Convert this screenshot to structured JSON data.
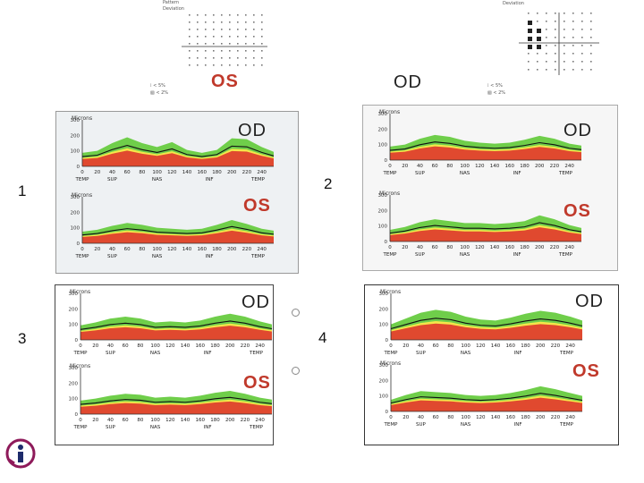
{
  "top": {
    "left_header": [
      "Pattern",
      "Deviation"
    ],
    "right_header": "Deviation",
    "left_legend": [
      "⁞ < 5%",
      "▧ < 2%"
    ],
    "right_legend": [
      "⁞ < 5%",
      "▧ < 2%"
    ],
    "left_eye_label": "OS",
    "right_eye_label": "OD"
  },
  "panels": [
    {
      "number": "1",
      "eye_top": "OD",
      "eye_bottom": "OS"
    },
    {
      "number": "2",
      "eye_top": "OD",
      "eye_bottom": "OS"
    },
    {
      "number": "3",
      "eye_top": "OD",
      "eye_bottom": "OS"
    },
    {
      "number": "4",
      "eye_top": "OD",
      "eye_bottom": "OS"
    }
  ],
  "chart_common": {
    "ylabel": "Microns",
    "y_ticks": [
      "300",
      "200",
      "100",
      "0"
    ],
    "x_ticks": [
      "0",
      "20",
      "40",
      "60",
      "80",
      "100",
      "120",
      "140",
      "160",
      "180",
      "200",
      "220",
      "240"
    ],
    "sector_labels": [
      "TEMP",
      "SUP",
      "NAS",
      "INF",
      "TEMP"
    ]
  },
  "chart_data": [
    {
      "type": "line",
      "title": "Panel 1 OD",
      "x": [
        0,
        20,
        40,
        60,
        80,
        100,
        120,
        140,
        160,
        180,
        200,
        220,
        240,
        256
      ],
      "values": [
        70,
        80,
        120,
        150,
        120,
        100,
        125,
        85,
        70,
        85,
        145,
        140,
        100,
        75
      ]
    },
    {
      "type": "line",
      "title": "Panel 1 OS",
      "x": [
        0,
        20,
        40,
        60,
        80,
        100,
        120,
        140,
        160,
        180,
        200,
        220,
        240,
        256
      ],
      "values": [
        60,
        70,
        90,
        105,
        95,
        80,
        75,
        70,
        75,
        95,
        120,
        100,
        75,
        65
      ]
    },
    {
      "type": "line",
      "title": "Panel 2 OD",
      "x": [
        0,
        20,
        40,
        60,
        80,
        100,
        120,
        140,
        160,
        180,
        200,
        220,
        240,
        256
      ],
      "values": [
        70,
        80,
        110,
        130,
        120,
        100,
        90,
        85,
        90,
        105,
        125,
        110,
        85,
        75
      ]
    },
    {
      "type": "line",
      "title": "Panel 2 OS",
      "x": [
        0,
        20,
        40,
        60,
        80,
        100,
        120,
        140,
        160,
        180,
        200,
        220,
        240,
        256
      ],
      "values": [
        60,
        75,
        100,
        115,
        105,
        95,
        95,
        90,
        95,
        105,
        135,
        115,
        85,
        70
      ]
    },
    {
      "type": "line",
      "title": "Panel 3 OD",
      "x": [
        0,
        20,
        40,
        60,
        80,
        100,
        120,
        140,
        160,
        180,
        200,
        220,
        240,
        256
      ],
      "values": [
        75,
        90,
        110,
        120,
        110,
        90,
        95,
        90,
        100,
        120,
        135,
        120,
        95,
        80
      ]
    },
    {
      "type": "line",
      "title": "Panel 3 OS",
      "x": [
        0,
        20,
        40,
        60,
        80,
        100,
        120,
        140,
        160,
        180,
        200,
        220,
        240,
        256
      ],
      "values": [
        70,
        80,
        95,
        105,
        100,
        85,
        90,
        85,
        95,
        110,
        120,
        105,
        85,
        75
      ]
    },
    {
      "type": "line",
      "title": "Panel 4 OD",
      "x": [
        0,
        20,
        40,
        60,
        80,
        100,
        120,
        140,
        160,
        180,
        200,
        220,
        240,
        256
      ],
      "values": [
        80,
        110,
        140,
        155,
        145,
        120,
        105,
        100,
        115,
        135,
        150,
        140,
        120,
        100
      ]
    },
    {
      "type": "line",
      "title": "Panel 4 OS",
      "x": [
        0,
        20,
        40,
        60,
        80,
        100,
        120,
        140,
        160,
        180,
        200,
        220,
        240,
        256
      ],
      "values": [
        60,
        85,
        105,
        100,
        95,
        85,
        80,
        85,
        95,
        110,
        130,
        115,
        95,
        80
      ]
    }
  ]
}
